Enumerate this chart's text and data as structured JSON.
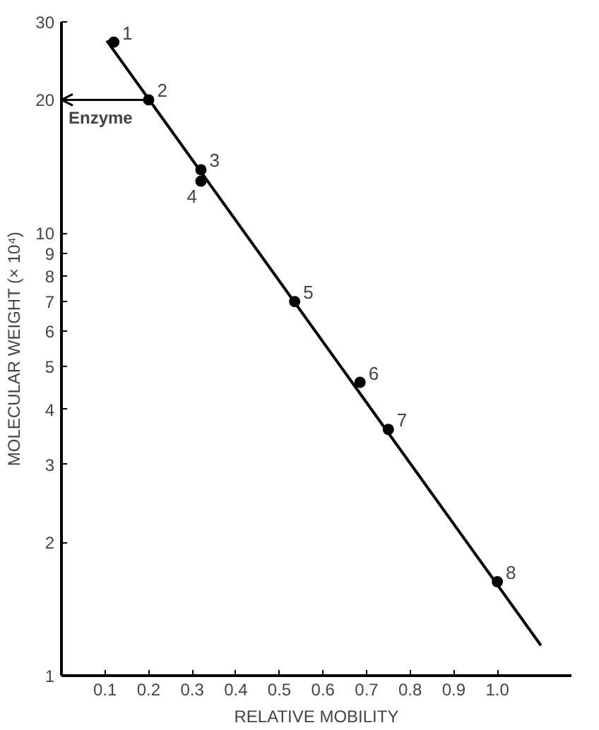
{
  "chart_data": {
    "type": "scatter",
    "xlabel": "RELATIVE MOBILITY",
    "ylabel": "MOLECULAR WEIGHT (× 10⁴)",
    "log": "y",
    "grid": false,
    "xlim": [
      0,
      1.17
    ],
    "ylim": [
      1,
      30
    ],
    "xticks": [
      0.1,
      0.2,
      0.3,
      0.4,
      0.5,
      0.6,
      0.7,
      0.8,
      0.9,
      {
        "value": 1.0,
        "label": "1.0"
      }
    ],
    "yticks": [
      1,
      2,
      3,
      4,
      5,
      6,
      7,
      8,
      9,
      10,
      20,
      30
    ],
    "series": [
      {
        "marker": "circle",
        "color": "#000000",
        "x": [
          0.12,
          0.2,
          0.32,
          0.32,
          0.535,
          0.685,
          0.75,
          1.0
        ],
        "values": [
          27,
          20,
          13.9,
          13.1,
          7.0,
          4.6,
          3.6,
          1.63
        ]
      },
      {
        "type": "line",
        "color": "#000000",
        "x": [
          0.104,
          1.1
        ],
        "values": [
          27.2,
          1.17
        ]
      }
    ],
    "annotations": [
      {
        "text": "1",
        "x": 0.12,
        "y": 27
      },
      {
        "text": "2",
        "x": 0.2,
        "y": 20
      },
      {
        "text": "3",
        "x": 0.32,
        "y": 13.9
      },
      {
        "text": "4",
        "x": 0.32,
        "y": 13.1
      },
      {
        "text": "5",
        "x": 0.535,
        "y": 7.0
      },
      {
        "text": "6",
        "x": 0.685,
        "y": 4.6
      },
      {
        "text": "7",
        "x": 0.75,
        "y": 3.6
      },
      {
        "text": "8",
        "x": 1.0,
        "y": 1.63
      },
      {
        "text": "Enzyme",
        "x": 0.2,
        "y": 20
      }
    ]
  }
}
